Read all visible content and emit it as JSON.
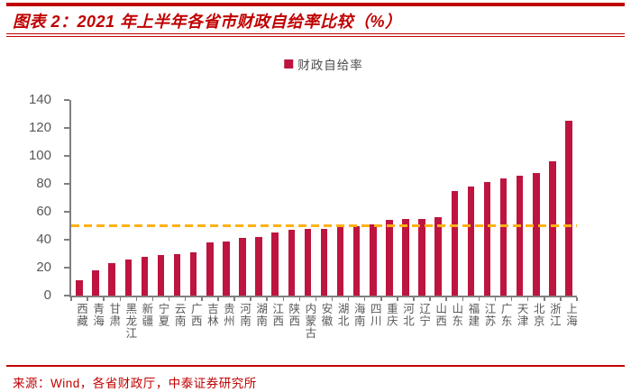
{
  "header": {
    "title": "图表 2：2021 年上半年各省市财政自给率比较（%）"
  },
  "legend": {
    "label": "财政自给率"
  },
  "chart_data": {
    "type": "bar",
    "title": "2021 年上半年各省市财政自给率比较（%）",
    "series_name": "财政自给率",
    "categories": [
      "西藏",
      "青海",
      "甘肃",
      "黑龙江",
      "新疆",
      "宁夏",
      "云南",
      "广西",
      "吉林",
      "贵州",
      "河南",
      "湖南",
      "江西",
      "陕西",
      "内蒙古",
      "安徽",
      "湖北",
      "海南",
      "四川",
      "重庆",
      "河北",
      "辽宁",
      "山西",
      "山东",
      "福建",
      "江苏",
      "广东",
      "天津",
      "北京",
      "浙江",
      "上海"
    ],
    "values": [
      11,
      18,
      23,
      26,
      28,
      29,
      30,
      31,
      38,
      39,
      41,
      42,
      45,
      47,
      48,
      48,
      49,
      50,
      51,
      54,
      55,
      55,
      56,
      75,
      78,
      81,
      84,
      86,
      88,
      96,
      125
    ],
    "ylim": [
      0,
      140
    ],
    "yticks": [
      0,
      20,
      40,
      60,
      80,
      100,
      120,
      140
    ],
    "reference_line": {
      "value": 50,
      "style": "dashed"
    },
    "grid": false,
    "legend_position": "top"
  },
  "footer": {
    "source": "来源：Wind，各省财政厅，中泰证券研究所"
  },
  "colors": {
    "bar": "#BE1440",
    "accent_red": "#C00000",
    "axis_gray": "#7F7F7F",
    "label_gray": "#595959",
    "reference_line": "#FFB114"
  }
}
